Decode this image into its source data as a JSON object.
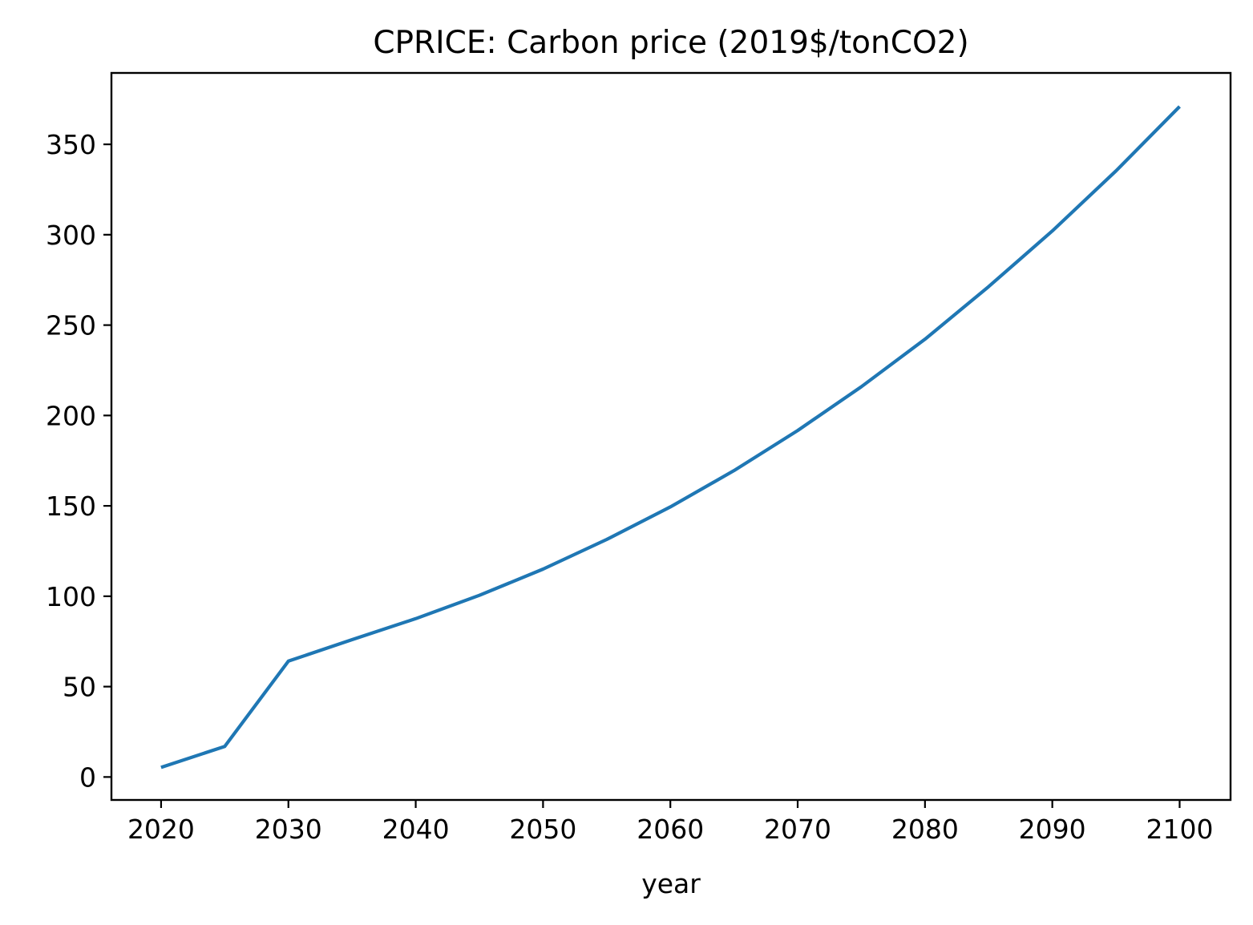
{
  "chart_data": {
    "type": "line",
    "title": "CPRICE: Carbon price (2019$/tonCO2)",
    "xlabel": "year",
    "ylabel": "",
    "xlim": [
      2016.1,
      2104.0
    ],
    "ylim": [
      -12.7,
      389.5
    ],
    "x_ticks": [
      2020,
      2030,
      2040,
      2050,
      2060,
      2070,
      2080,
      2090,
      2100
    ],
    "y_ticks": [
      0,
      50,
      100,
      150,
      200,
      250,
      300,
      350
    ],
    "grid": false,
    "legend": "none",
    "series": [
      {
        "color": "#1f77b4",
        "x": [
          2020,
          2025,
          2030,
          2035,
          2040,
          2045,
          2050,
          2055,
          2060,
          2065,
          2070,
          2075,
          2080,
          2085,
          2090,
          2095,
          2100
        ],
        "y": [
          5.3,
          16.9,
          64.1,
          76.0,
          87.6,
          100.5,
          115.0,
          131.4,
          149.4,
          169.5,
          191.7,
          215.9,
          242.2,
          271.3,
          302.1,
          335.3,
          370.9
        ]
      }
    ]
  }
}
